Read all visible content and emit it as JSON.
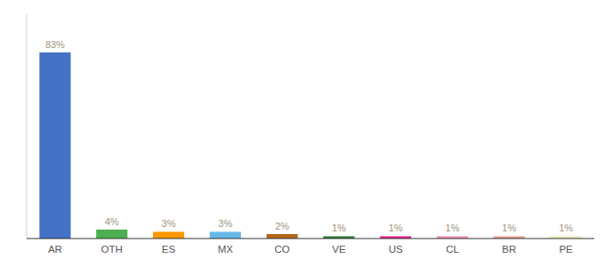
{
  "chart_data": {
    "type": "bar",
    "categories": [
      "AR",
      "OTH",
      "ES",
      "MX",
      "CO",
      "VE",
      "US",
      "CL",
      "BR",
      "PE"
    ],
    "values": [
      83,
      4,
      3,
      3,
      2,
      1,
      1,
      1,
      1,
      1
    ],
    "value_labels": [
      "83%",
      "4%",
      "3%",
      "3%",
      "2%",
      "1%",
      "1%",
      "1%",
      "1%",
      "1%"
    ],
    "colors": [
      "#4472c4",
      "#4caf50",
      "#ff9800",
      "#64b8e8",
      "#b5651d",
      "#2e7d32",
      "#e91e8c",
      "#f48fb1",
      "#e8a090",
      "#f0e8c0"
    ],
    "ylim": [
      0,
      100
    ],
    "data_labels": true,
    "tick_labels": "x"
  }
}
